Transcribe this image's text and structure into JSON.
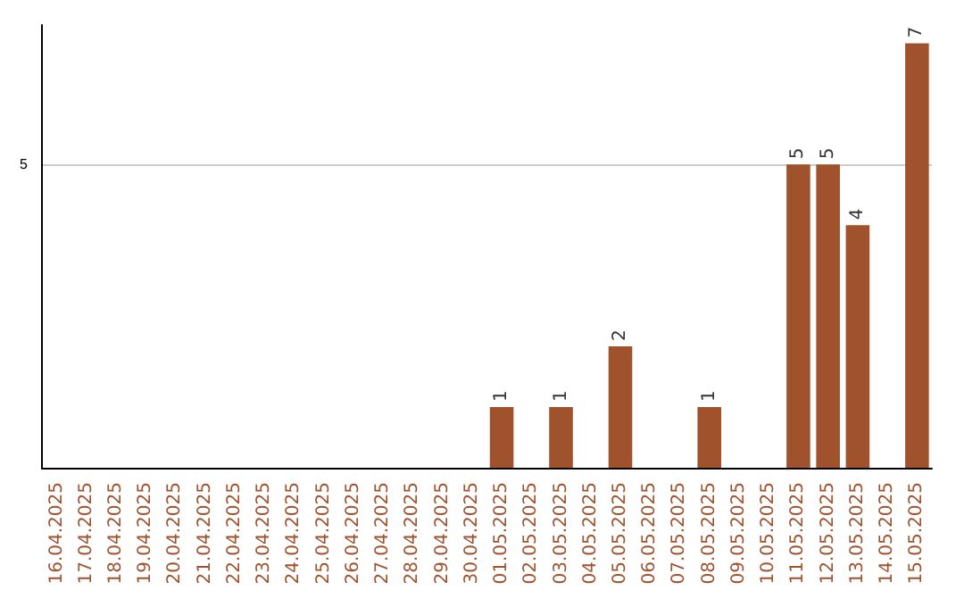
{
  "chart_data": {
    "type": "bar",
    "categories": [
      "16.04.2025",
      "17.04.2025",
      "18.04.2025",
      "19.04.2025",
      "20.04.2025",
      "21.04.2025",
      "22.04.2025",
      "23.04.2025",
      "24.04.2025",
      "25.04.2025",
      "26.04.2025",
      "27.04.2025",
      "28.04.2025",
      "29.04.2025",
      "30.04.2025",
      "01.05.2025",
      "02.05.2025",
      "03.05.2025",
      "04.05.2025",
      "05.05.2025",
      "06.05.2025",
      "07.05.2025",
      "08.05.2025",
      "09.05.2025",
      "10.05.2025",
      "11.05.2025",
      "12.05.2025",
      "13.05.2025",
      "14.05.2025",
      "15.05.2025"
    ],
    "values": [
      null,
      null,
      null,
      null,
      null,
      null,
      null,
      null,
      null,
      null,
      null,
      null,
      null,
      null,
      null,
      1,
      null,
      1,
      null,
      2,
      null,
      null,
      1,
      null,
      null,
      5,
      5,
      4,
      null,
      7
    ],
    "data_labels": true,
    "color": "#a0522d",
    "ylim": [
      0,
      7.3
    ],
    "yticks": [
      5
    ],
    "grid": "y"
  }
}
